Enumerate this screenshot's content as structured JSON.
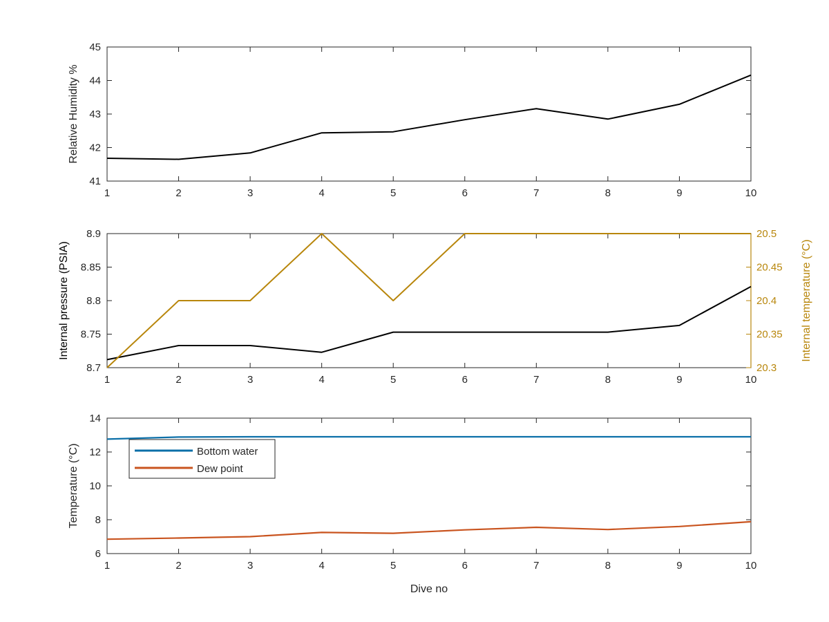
{
  "colors": {
    "axis": "#262626",
    "black_series": "#000000",
    "right_axis": "#b8860b",
    "bottom_water": "#0b6fa8",
    "dew_point": "#c9541f"
  },
  "chart_data": [
    {
      "type": "line",
      "x": [
        1,
        2,
        3,
        4,
        5,
        6,
        7,
        8,
        9,
        10
      ],
      "xlim": [
        1,
        10
      ],
      "xticks": [
        "1",
        "2",
        "3",
        "4",
        "5",
        "6",
        "7",
        "8",
        "9",
        "10"
      ],
      "xlabel": "",
      "ylabel": "Relative Humidity %",
      "ylim": [
        41,
        45
      ],
      "yticks": [
        "41",
        "42",
        "43",
        "44",
        "45"
      ],
      "series": [
        {
          "values": [
            41.68,
            41.65,
            41.84,
            42.44,
            42.47,
            42.83,
            43.16,
            42.85,
            43.29,
            44.16
          ],
          "color": "#000000"
        }
      ]
    },
    {
      "type": "line",
      "x": [
        1,
        2,
        3,
        4,
        5,
        6,
        7,
        8,
        9,
        10
      ],
      "xlim": [
        1,
        10
      ],
      "xticks": [
        "1",
        "2",
        "3",
        "4",
        "5",
        "6",
        "7",
        "8",
        "9",
        "10"
      ],
      "xlabel": "",
      "ylabel": "Internal pressure (PSIA)",
      "ylim": [
        8.7,
        8.9
      ],
      "yticks": [
        "8.7",
        "8.75",
        "8.8",
        "8.85",
        "8.9"
      ],
      "y2label": "Internal temperature (°C)",
      "y2lim": [
        20.3,
        20.5
      ],
      "y2ticks": [
        "20.3",
        "20.35",
        "20.4",
        "20.45",
        "20.5"
      ],
      "series": [
        {
          "axis": "left",
          "values": [
            8.712,
            8.733,
            8.733,
            8.723,
            8.753,
            8.753,
            8.753,
            8.753,
            8.763,
            8.821
          ],
          "color": "#000000"
        },
        {
          "axis": "right",
          "values": [
            20.3,
            20.4,
            20.4,
            20.5,
            20.4,
            20.5,
            20.5,
            20.5,
            20.5,
            20.5
          ],
          "color": "#b8860b"
        }
      ]
    },
    {
      "type": "line",
      "x": [
        1,
        2,
        3,
        4,
        5,
        6,
        7,
        8,
        9,
        10
      ],
      "xlim": [
        1,
        10
      ],
      "xticks": [
        "1",
        "2",
        "3",
        "4",
        "5",
        "6",
        "7",
        "8",
        "9",
        "10"
      ],
      "xlabel": "Dive no",
      "ylabel": "Temperature (°C)",
      "ylim": [
        6,
        14
      ],
      "yticks": [
        "6",
        "8",
        "10",
        "12",
        "14"
      ],
      "legend": "top-left",
      "series": [
        {
          "name": "Bottom water",
          "values": [
            12.76,
            12.88,
            12.9,
            12.9,
            12.9,
            12.9,
            12.9,
            12.9,
            12.9,
            12.9
          ],
          "color": "#0b6fa8"
        },
        {
          "name": "Dew point",
          "values": [
            6.85,
            6.92,
            7.0,
            7.25,
            7.2,
            7.4,
            7.55,
            7.42,
            7.6,
            7.88
          ],
          "color": "#c9541f"
        }
      ]
    }
  ]
}
